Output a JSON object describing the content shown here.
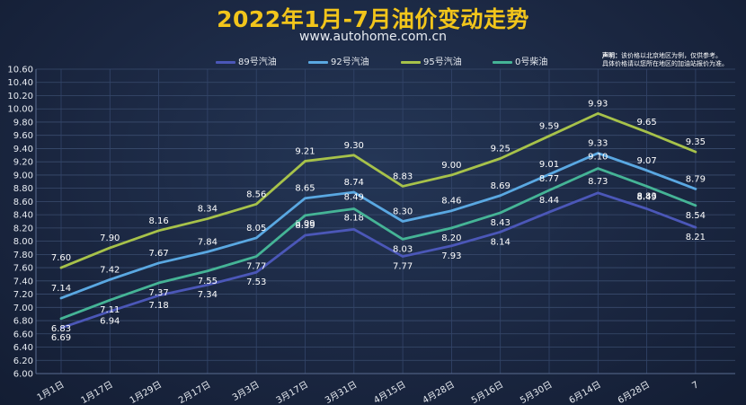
{
  "header": {
    "title": "2022年1月-7月油价变动走势",
    "subtitle": "www.autohome.com.cn"
  },
  "note": {
    "label": "声明：",
    "line1": "该价格以北京地区为例，仅供参考。",
    "line2": "具体价格请以您所在地区的加油站报价为准。"
  },
  "colors": {
    "s89": "#4b57b8",
    "s92": "#5aa8e2",
    "s95": "#a7c24a",
    "s0": "#45b496"
  },
  "chart_data": {
    "type": "line",
    "categories": [
      "1月1日",
      "1月17日",
      "1月29日",
      "2月17日",
      "3月3日",
      "3月17日",
      "3月31日",
      "4月15日",
      "4月28日",
      "5月16日",
      "5月30日",
      "6月14日",
      "6月28日",
      "7"
    ],
    "ylim": [
      6.0,
      10.6
    ],
    "ytick_step": 0.2,
    "grid": true,
    "legend_position": "top-center",
    "series": [
      {
        "name": "89号汽油",
        "key": "s89",
        "values": [
          6.69,
          6.94,
          7.18,
          7.34,
          7.53,
          8.09,
          8.18,
          7.77,
          7.93,
          8.14,
          8.44,
          8.73,
          8.49,
          8.21
        ]
      },
      {
        "name": "92号汽油",
        "key": "s92",
        "values": [
          7.14,
          7.42,
          7.67,
          7.84,
          8.05,
          8.65,
          8.74,
          8.3,
          8.46,
          8.69,
          9.01,
          9.33,
          9.07,
          8.79
        ]
      },
      {
        "name": "95号汽油",
        "key": "s95",
        "values": [
          7.6,
          7.9,
          8.16,
          8.34,
          8.56,
          9.21,
          9.3,
          8.83,
          9.0,
          9.25,
          9.59,
          9.93,
          9.65,
          9.35
        ]
      },
      {
        "name": "0号柴油",
        "key": "s0",
        "values": [
          6.83,
          7.11,
          7.37,
          7.55,
          7.77,
          8.39,
          8.49,
          8.03,
          8.2,
          8.43,
          8.77,
          9.1,
          8.83,
          8.54
        ]
      }
    ]
  }
}
